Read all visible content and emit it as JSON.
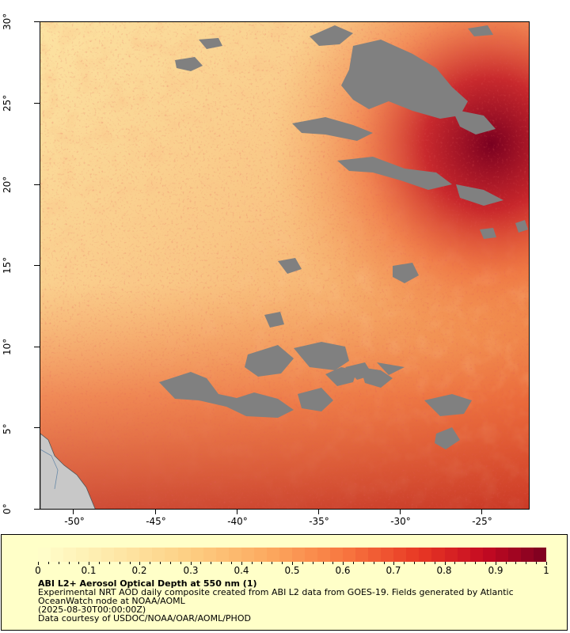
{
  "map": {
    "y_axis_labels": [
      "30°",
      "25°",
      "20°",
      "15°",
      "10°",
      "5°",
      "0°"
    ],
    "x_axis_labels": [
      "-50°",
      "-45°",
      "-40°",
      "-35°",
      "-30°",
      "-25°"
    ],
    "extent": {
      "lon_min": -52,
      "lon_max": -22,
      "lat_min": 0,
      "lat_max": 30
    },
    "colors": {
      "no_data": "#808080",
      "land": "#c8c8c8",
      "ocean_low": "#fde8a8",
      "ocean_mid": "#f8b070",
      "ocean_high": "#e04020",
      "ocean_max": "#7a0020"
    }
  },
  "legend": {
    "colorbar_labels": [
      "0",
      "0.1",
      "0.2",
      "0.3",
      "0.4",
      "0.5",
      "0.6",
      "0.7",
      "0.8",
      "0.9",
      "1"
    ],
    "title": "ABI L2+ Aerosol Optical Depth at 550 nm (1)",
    "line1": "Experimental NRT AOD daily composite created from ABI L2 data from GOES-19. Fields generated by Atlantic",
    "line2": "OceanWatch node at NOAA/AOML",
    "line3": "(2025-08-30T00:00:00Z)",
    "line4": "Data courtesy of USDOC/NOAA/OAR/AOML/PHOD",
    "background": "#ffffc8"
  }
}
